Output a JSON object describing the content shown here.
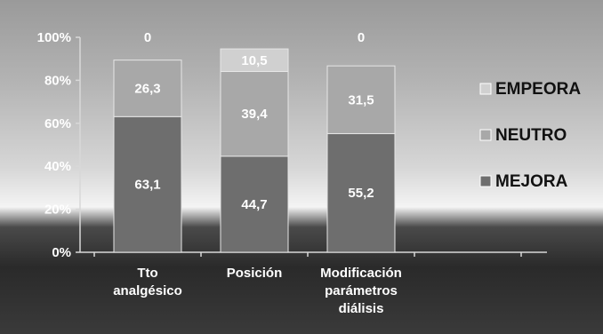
{
  "chart_data": {
    "type": "bar",
    "stacked": true,
    "categories": [
      [
        "Tto",
        "analgésico"
      ],
      [
        "Posición"
      ],
      [
        "Modificación",
        "parámetros",
        "diálisis"
      ]
    ],
    "series": [
      {
        "name": "MEJORA",
        "values": [
          63.1,
          44.7,
          55.2
        ],
        "labels": [
          "63,1",
          "44,7",
          "55,2"
        ],
        "color": "#6e6e6e"
      },
      {
        "name": "NEUTRO",
        "values": [
          26.3,
          39.4,
          31.5
        ],
        "labels": [
          "26,3",
          "39,4",
          "31,5"
        ],
        "color": "#a8a8a8"
      },
      {
        "name": "EMPEORA",
        "values": [
          0,
          10.5,
          0
        ],
        "labels": [
          "0",
          "10,5",
          "0"
        ],
        "color": "#d0d0d0"
      }
    ],
    "yticks": [
      "0%",
      "20%",
      "40%",
      "60%",
      "80%",
      "100%"
    ],
    "ylim": [
      0,
      100
    ],
    "legend_position": "right",
    "legend_order": [
      "EMPEORA",
      "NEUTRO",
      "MEJORA"
    ],
    "grid": false
  }
}
